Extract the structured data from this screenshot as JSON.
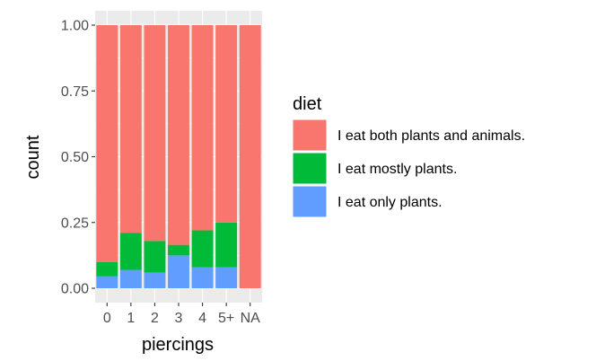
{
  "chart_data": {
    "type": "bar",
    "stacked": true,
    "position": "fill",
    "categories": [
      "0",
      "1",
      "2",
      "3",
      "4",
      "5+",
      "NA"
    ],
    "xlabel": "piercings",
    "ylabel": "count",
    "ylim": [
      0,
      1
    ],
    "yticks": [
      "0.00",
      "0.25",
      "0.50",
      "0.75",
      "1.00"
    ],
    "ytick_values": [
      0,
      0.25,
      0.5,
      0.75,
      1.0
    ],
    "grid": true,
    "legend_position": "right",
    "legend_title": "diet",
    "series": [
      {
        "name": "I eat both plants and animals.",
        "color": "#F8766D",
        "values": [
          0.9,
          0.79,
          0.82,
          0.835,
          0.78,
          0.75,
          1.0
        ]
      },
      {
        "name": "I eat mostly plants.",
        "color": "#00BA38",
        "values": [
          0.055,
          0.14,
          0.12,
          0.04,
          0.14,
          0.17,
          0.0
        ]
      },
      {
        "name": "I eat only plants.",
        "color": "#619CFF",
        "values": [
          0.045,
          0.07,
          0.06,
          0.125,
          0.08,
          0.08,
          0.0
        ]
      }
    ],
    "stack_order_bottom_to_top": [
      "I eat only plants.",
      "I eat mostly plants.",
      "I eat both plants and animals."
    ]
  }
}
